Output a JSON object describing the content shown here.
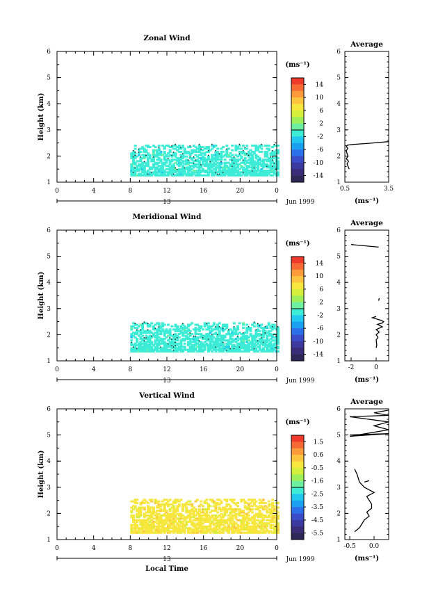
{
  "figure": {
    "date_label": "Jun 1999",
    "day_label": "13",
    "x_axis_label": "Local Time",
    "time_ticks": [
      "0",
      "4",
      "8",
      "12",
      "16",
      "20",
      "0"
    ],
    "average_title": "Average",
    "units_label": "(ms⁻¹)"
  },
  "chart_data": [
    {
      "type": "heatmap",
      "title": "Zonal Wind",
      "ylabel": "Height (km)",
      "xlabel": "",
      "xlim": [
        0,
        24
      ],
      "ylim": [
        1,
        6
      ],
      "yticks": [
        "1",
        "2",
        "3",
        "4",
        "5",
        "6"
      ],
      "data_extent": {
        "time_start_h": 8,
        "time_end_h": 24,
        "height_min_km": 1.3,
        "height_max_km": 2.5
      },
      "dominant_value_ms": -1,
      "colorbar": {
        "tick_labels": [
          "14",
          "10",
          "6",
          "2",
          "-2",
          "-6",
          "-10",
          "-14"
        ],
        "range": [
          -16,
          16
        ],
        "colors": [
          "#ef3a2c",
          "#f86a33",
          "#fd9a3a",
          "#fec440",
          "#f7e63d",
          "#d4f03a",
          "#9ef05a",
          "#6cf0a0",
          "#3cecd6",
          "#20c8f0",
          "#1aa0f0",
          "#2a70e8",
          "#3a4cc8",
          "#3c3aa0",
          "#3a2c78",
          "#2c2858"
        ]
      }
    },
    {
      "type": "line",
      "title": "Average",
      "xlabel": "(ms⁻¹)",
      "ylabel": "",
      "xlim": [
        0.5,
        3.5
      ],
      "ylim": [
        1,
        6
      ],
      "xtick_labels": [
        "0.5",
        "3.5"
      ],
      "x": [
        0.8,
        0.72,
        0.65,
        0.75,
        0.6,
        0.72,
        0.65,
        0.6,
        0.7,
        0.6,
        0.68,
        1.2,
        2.0,
        3.5
      ],
      "y": [
        1.5,
        1.6,
        1.7,
        1.8,
        1.9,
        2.0,
        2.1,
        2.2,
        2.3,
        2.35,
        2.42,
        2.45,
        2.48,
        2.55
      ]
    },
    {
      "type": "heatmap",
      "title": "Meridional Wind",
      "ylabel": "Height (km)",
      "xlabel": "",
      "xlim": [
        0,
        24
      ],
      "ylim": [
        1,
        6
      ],
      "yticks": [
        "1",
        "2",
        "3",
        "4",
        "5",
        "6"
      ],
      "data_extent": {
        "time_start_h": 8,
        "time_end_h": 24,
        "height_min_km": 1.4,
        "height_max_km": 2.5
      },
      "dominant_value_ms": -1,
      "colorbar": {
        "tick_labels": [
          "14",
          "10",
          "6",
          "2",
          "-2",
          "-6",
          "-10",
          "-14"
        ],
        "range": [
          -16,
          16
        ],
        "colors": [
          "#ef3a2c",
          "#f86a33",
          "#fd9a3a",
          "#fec440",
          "#f7e63d",
          "#d4f03a",
          "#9ef05a",
          "#6cf0a0",
          "#3cecd6",
          "#20c8f0",
          "#1aa0f0",
          "#2a70e8",
          "#3a4cc8",
          "#3c3aa0",
          "#3a2c78",
          "#2c2858"
        ]
      }
    },
    {
      "type": "line",
      "title": "Average",
      "xlabel": "(ms⁻¹)",
      "ylabel": "",
      "xlim": [
        -2.5,
        1.0
      ],
      "ylim": [
        1,
        6
      ],
      "xtick_labels": [
        "-2",
        "0"
      ],
      "x": [
        0.0,
        0.05,
        0.0,
        0.15,
        0.0,
        0.25,
        0.0,
        0.5,
        0.1,
        0.5,
        0.6,
        0.4,
        -0.3,
        0.0
      ],
      "y": [
        1.5,
        1.6,
        1.8,
        1.9,
        2.0,
        2.1,
        2.2,
        2.3,
        2.4,
        2.45,
        2.5,
        2.55,
        2.65,
        2.7
      ],
      "extra_segments": [
        {
          "x": [
            -2.0,
            0.2
          ],
          "y": [
            5.45,
            5.35
          ]
        },
        {
          "x": [
            0.2,
            0.25
          ],
          "y": [
            3.3,
            3.4
          ]
        }
      ]
    },
    {
      "type": "heatmap",
      "title": "Vertical Wind",
      "ylabel": "Height (km)",
      "xlabel": "Local Time",
      "xlim": [
        0,
        24
      ],
      "ylim": [
        1,
        6
      ],
      "yticks": [
        "1",
        "2",
        "3",
        "4",
        "5",
        "6"
      ],
      "data_extent": {
        "time_start_h": 8,
        "time_end_h": 24,
        "height_min_km": 1.3,
        "height_max_km": 2.6
      },
      "dominant_value_ms": -0.3,
      "colorbar": {
        "tick_labels": [
          "1.5",
          "0.6",
          "-0.5",
          "-1.6",
          "-2.5",
          "-3.5",
          "-4.5",
          "-5.5"
        ],
        "range": [
          -6.0,
          2.0
        ],
        "colors": [
          "#ef3a2c",
          "#f86a33",
          "#fd9a3a",
          "#fec440",
          "#f7e63d",
          "#d4f03a",
          "#9ef05a",
          "#6cf0a0",
          "#3cecd6",
          "#20c8f0",
          "#1aa0f0",
          "#2a70e8",
          "#3a4cc8",
          "#3c3aa0",
          "#3a2c78",
          "#2c2858"
        ]
      }
    },
    {
      "type": "line",
      "title": "Average",
      "xlabel": "(ms⁻¹)",
      "ylabel": "",
      "xlim": [
        -0.6,
        0.3
      ],
      "ylim": [
        1,
        6
      ],
      "xtick_labels": [
        "-0.5",
        "0.0"
      ],
      "x": [
        -0.4,
        -0.3,
        -0.25,
        -0.2,
        -0.1,
        -0.15,
        -0.05,
        -0.05,
        -0.1,
        -0.15,
        0.0,
        -0.1,
        -0.2,
        -0.3,
        -0.35,
        -0.4
      ],
      "y": [
        1.3,
        1.45,
        1.6,
        1.75,
        1.9,
        2.05,
        2.2,
        2.35,
        2.5,
        2.65,
        2.8,
        2.9,
        3.0,
        3.2,
        3.5,
        3.7
      ],
      "extra_segments": [
        {
          "x": [
            -0.5,
            0.3,
            -0.5,
            0.3,
            0.0,
            0.3,
            -0.5,
            0.3,
            0.0,
            0.3
          ],
          "y": [
            5.0,
            5.05,
            4.95,
            5.2,
            5.35,
            5.5,
            5.7,
            5.75,
            5.85,
            5.95
          ]
        },
        {
          "x": [
            -0.2,
            -0.1
          ],
          "y": [
            3.2,
            3.25
          ]
        }
      ]
    }
  ]
}
